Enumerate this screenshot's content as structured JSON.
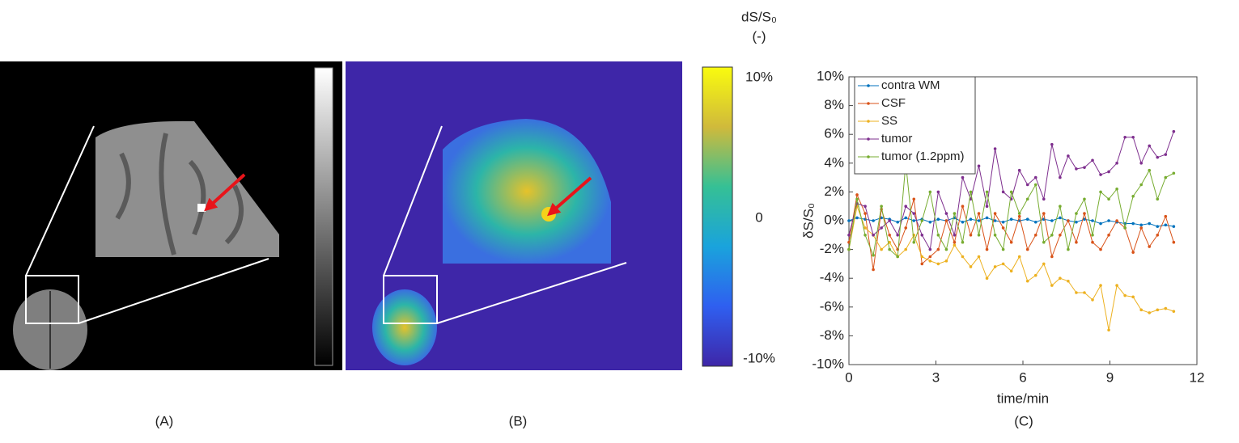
{
  "panels": {
    "labels": [
      "(A)",
      "(B)",
      "(C)"
    ]
  },
  "colorbar": {
    "title": "dS/S₀",
    "unit": "(-)",
    "ticks": [
      "10%",
      "0",
      "-10%"
    ]
  },
  "chart_data": {
    "type": "line",
    "xlabel": "time/min",
    "ylabel": "δS/S₀",
    "x": [
      0,
      0.28,
      0.56,
      0.84,
      1.12,
      1.4,
      1.68,
      1.96,
      2.24,
      2.52,
      2.8,
      3.08,
      3.36,
      3.64,
      3.92,
      4.2,
      4.48,
      4.76,
      5.04,
      5.32,
      5.6,
      5.88,
      6.16,
      6.44,
      6.72,
      7,
      7.28,
      7.56,
      7.84,
      8.12,
      8.4,
      8.68,
      8.96,
      9.24,
      9.52,
      9.8,
      10.08,
      10.36,
      10.64,
      10.92,
      11.2
    ],
    "series": [
      {
        "name": "contra WM",
        "color": "#0072bd",
        "values": [
          0,
          0.2,
          0.1,
          0,
          0.2,
          0.1,
          -0.1,
          0.2,
          0,
          0.1,
          -0.1,
          0.1,
          0,
          0.2,
          -0.1,
          0.1,
          0,
          0.2,
          0,
          -0.1,
          0.1,
          0,
          0.1,
          -0.1,
          0.1,
          0,
          0.2,
          0,
          -0.1,
          0.1,
          0,
          -0.2,
          0,
          -0.1,
          -0.2,
          -0.2,
          -0.3,
          -0.2,
          -0.4,
          -0.3,
          -0.4
        ]
      },
      {
        "name": "CSF",
        "color": "#d95319",
        "values": [
          -1.5,
          1.8,
          0.5,
          -3.4,
          0.8,
          -1,
          -2,
          -0.5,
          1.5,
          -3,
          -2.5,
          -2,
          0,
          -1.5,
          1,
          -1,
          0.5,
          -2,
          0.5,
          -0.5,
          -1.5,
          0.3,
          -2,
          -1,
          0.5,
          -2.5,
          -1,
          0,
          -1.5,
          0.5,
          -1.5,
          -2,
          -1,
          0,
          -0.5,
          -2.2,
          -0.5,
          -1.8,
          -1,
          0.3,
          -1.5
        ]
      },
      {
        "name": "SS",
        "color": "#edb120",
        "values": [
          -2,
          1,
          -0.5,
          -1,
          -2,
          -1.5,
          -2.5,
          -2,
          -1,
          -2.5,
          -2.8,
          -3,
          -2.8,
          -1.7,
          -2.5,
          -3.2,
          -2.5,
          -4,
          -3.2,
          -3,
          -3.5,
          -2.5,
          -4.2,
          -3.8,
          -3,
          -4.5,
          -4,
          -4.2,
          -5,
          -5,
          -5.5,
          -4.5,
          -7.6,
          -4.5,
          -5.2,
          -5.3,
          -6.2,
          -6.4,
          -6.2,
          -6.1,
          -6.3
        ]
      },
      {
        "name": "tumor",
        "color": "#7e2f8e",
        "values": [
          -1,
          1.2,
          1,
          -1,
          -0.5,
          0,
          -1,
          1,
          0.5,
          -1,
          -2,
          2,
          0.5,
          -1,
          3,
          1.5,
          3.8,
          1,
          5,
          2,
          1.5,
          3.5,
          2.5,
          3,
          1.5,
          5.3,
          3,
          4.5,
          3.6,
          3.7,
          4.2,
          3.2,
          3.4,
          4,
          5.8,
          5.8,
          4,
          5.2,
          4.4,
          4.6,
          6.2
        ]
      },
      {
        "name": "tumor (1.2ppm)",
        "color": "#77ac30",
        "values": [
          -2,
          1.5,
          -1,
          -2.4,
          1,
          -2,
          -2.5,
          4,
          -1.5,
          0,
          2,
          -1,
          -2,
          0.5,
          -1.5,
          2,
          -1,
          2,
          -1,
          -2,
          2,
          0.5,
          1.5,
          2.5,
          -1.5,
          -1,
          1,
          -2,
          0.5,
          1.5,
          -1,
          2,
          1.5,
          2.2,
          -0.5,
          1.7,
          2.5,
          3.5,
          1.5,
          3,
          3.3
        ]
      }
    ],
    "xlim": [
      0,
      12
    ],
    "xticks": [
      0,
      3,
      6,
      9,
      12
    ],
    "ylim": [
      -10,
      10
    ],
    "yticks": [
      {
        "value": -10,
        "label": "-10%"
      },
      {
        "value": -8,
        "label": "-8%"
      },
      {
        "value": -6,
        "label": "-6%"
      },
      {
        "value": -4,
        "label": "-4%"
      },
      {
        "value": -2,
        "label": "-2%"
      },
      {
        "value": 0,
        "label": "0%"
      },
      {
        "value": 2,
        "label": "2%"
      },
      {
        "value": 4,
        "label": "4%"
      },
      {
        "value": 6,
        "label": "6%"
      },
      {
        "value": 8,
        "label": "8%"
      },
      {
        "value": 10,
        "label": "10%"
      }
    ],
    "legend": "upper left"
  }
}
